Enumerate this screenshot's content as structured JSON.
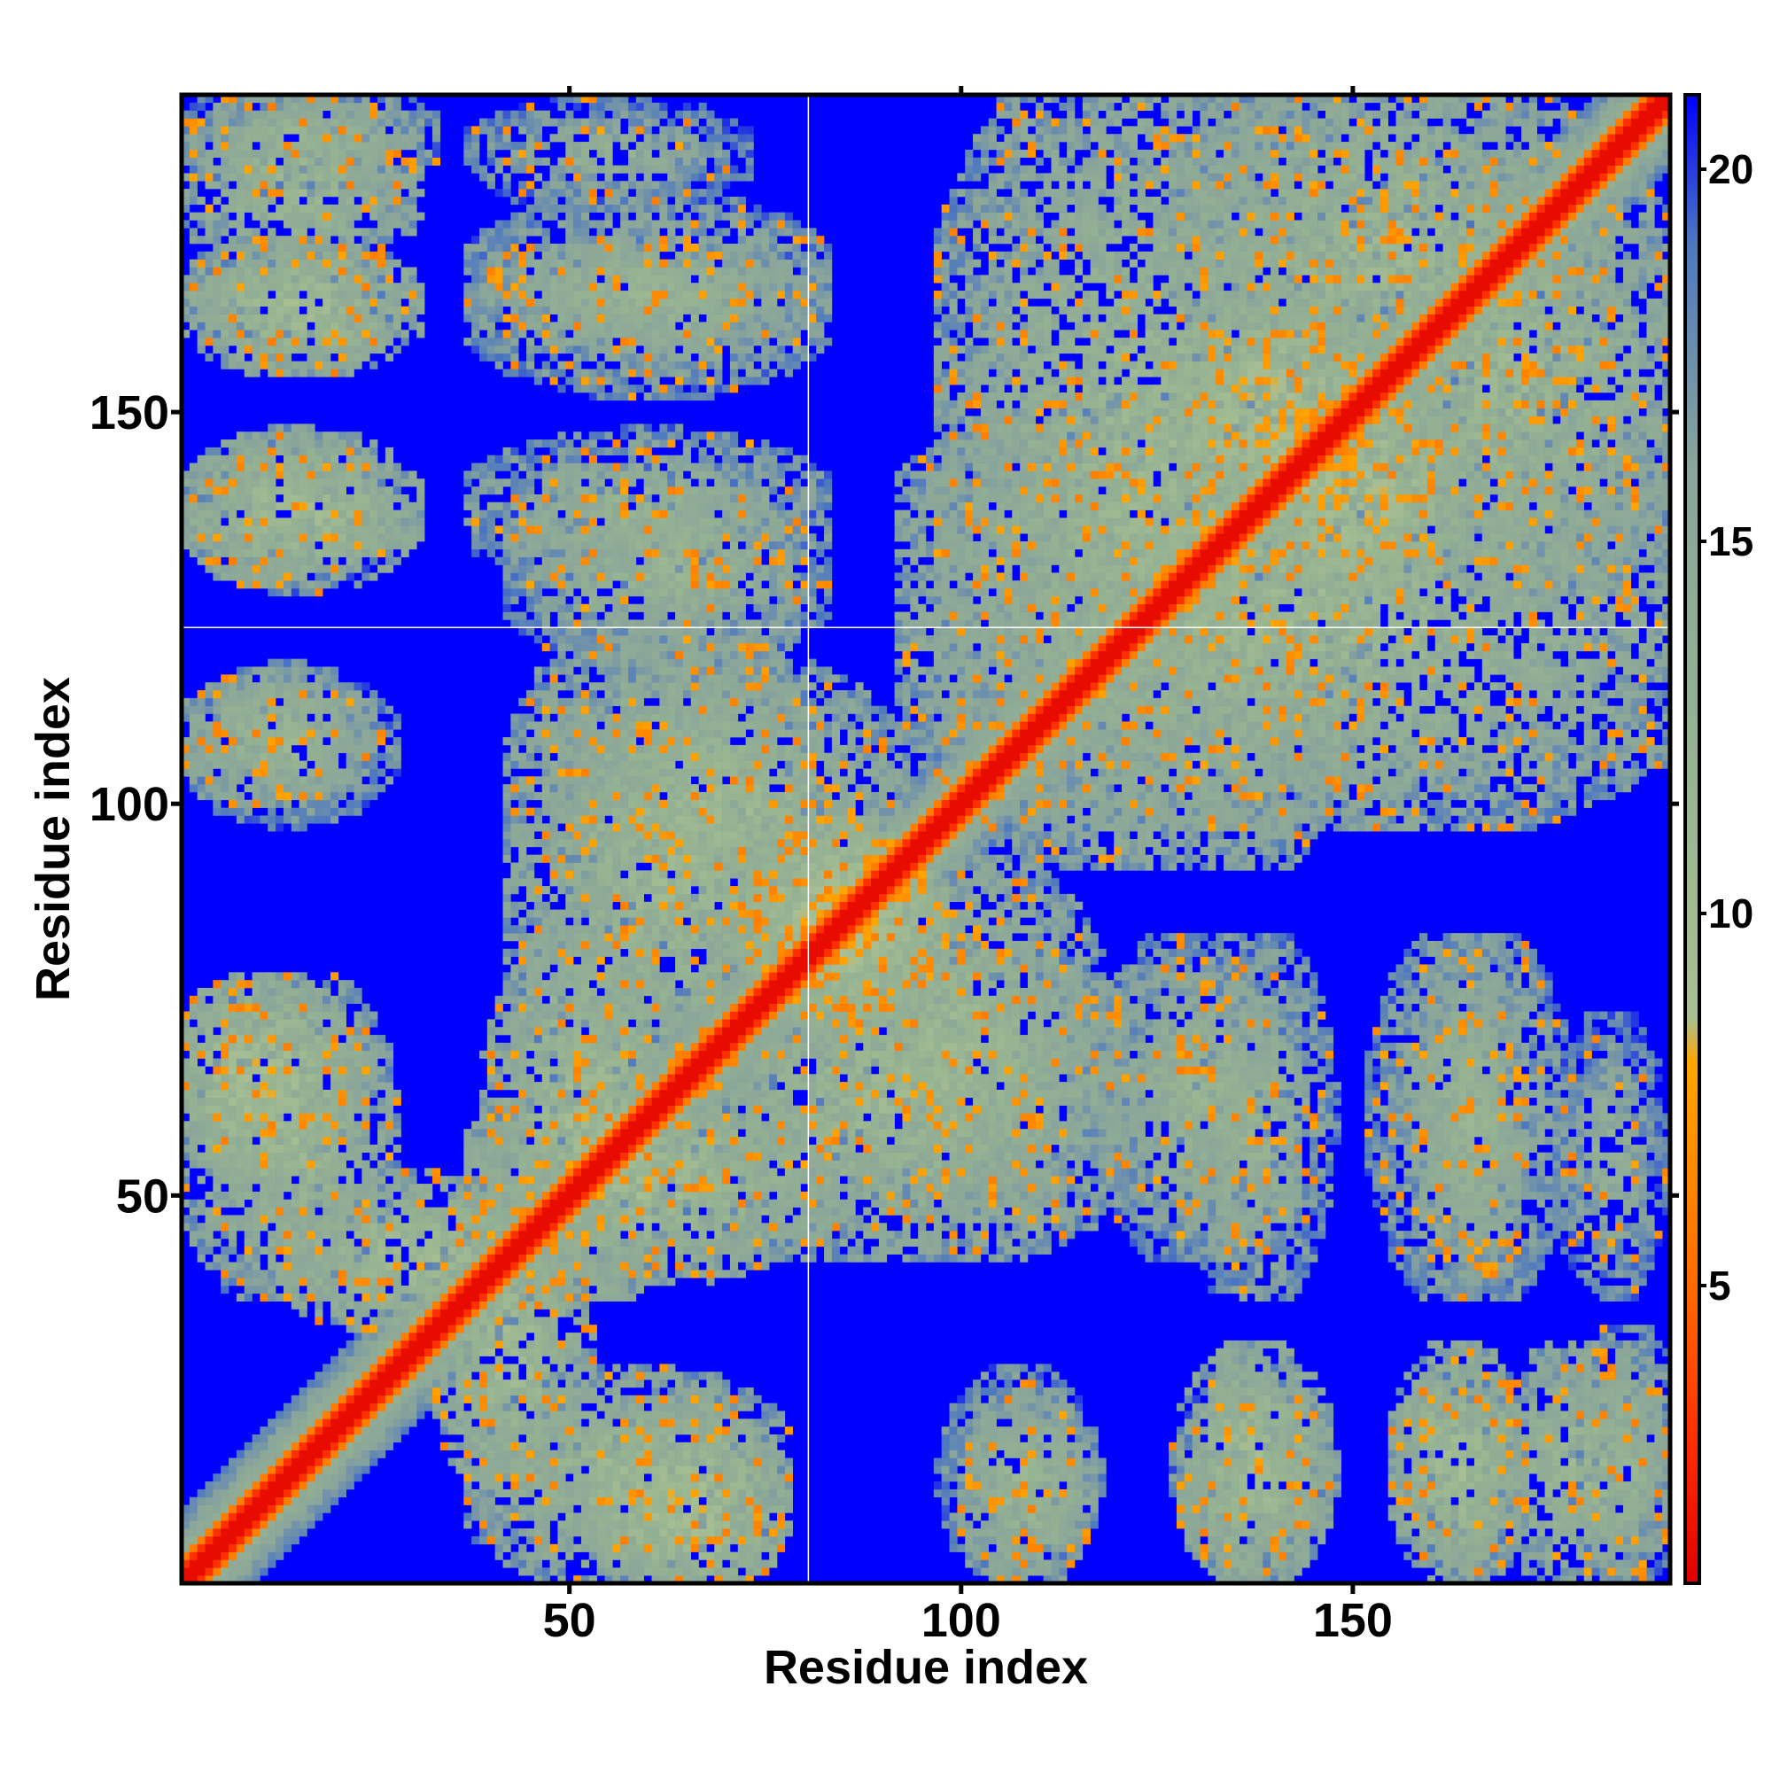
{
  "chart_data": {
    "type": "heatmap",
    "title": "",
    "xlabel": "Residue index",
    "ylabel": "Residue index",
    "n_residues": 190,
    "xlim": [
      1,
      190
    ],
    "ylim": [
      1,
      190
    ],
    "x_ticks": [
      50,
      100,
      150
    ],
    "y_ticks": [
      50,
      100,
      150
    ],
    "x_tick_labels": [
      "50",
      "100",
      "150"
    ],
    "y_tick_labels": [
      "50",
      "100",
      "150"
    ],
    "reference_lines": {
      "x": 81,
      "y": 122,
      "color": "#ffffff"
    },
    "value_range": [
      1,
      21
    ],
    "colorbar": {
      "ticks": [
        5,
        10,
        15,
        20
      ],
      "tick_labels": [
        "5",
        "10",
        "15",
        "20"
      ],
      "stops": [
        {
          "value": 1,
          "color": "#e00000"
        },
        {
          "value": 3,
          "color": "#ff3000"
        },
        {
          "value": 5,
          "color": "#ff6a00"
        },
        {
          "value": 8,
          "color": "#ffa500"
        },
        {
          "value": 8.6,
          "color": "#a9bf93"
        },
        {
          "value": 12,
          "color": "#96b392"
        },
        {
          "value": 16,
          "color": "#8aa59a"
        },
        {
          "value": 19,
          "color": "#4d78c0"
        },
        {
          "value": 21,
          "color": "#0000ff"
        }
      ]
    },
    "matrix_description_of_values": "pairwise residue distance; small values near diagonal (red), large values (blue) far off-diagonal",
    "contact_regions": [
      {
        "x": [
          1,
          190
        ],
        "y_eq_x": true,
        "value": 2
      },
      {
        "x": [
          3,
          28
        ],
        "y": [
          170,
          188
        ],
        "value": 11
      },
      {
        "x": [
          3,
          28
        ],
        "y": [
          157,
          170
        ],
        "value": 10
      },
      {
        "x": [
          3,
          28
        ],
        "y": [
          130,
          145
        ],
        "value": 10
      },
      {
        "x": [
          3,
          22
        ],
        "y": [
          102,
          115
        ],
        "value": 11
      },
      {
        "x": [
          1,
          20
        ],
        "y": [
          55,
          75
        ],
        "value": 9
      },
      {
        "x": [
          15,
          45
        ],
        "y": [
          35,
          50
        ],
        "value": 10
      },
      {
        "x": [
          40,
          80
        ],
        "y": [
          42,
          62
        ],
        "value": 10
      },
      {
        "x": [
          45,
          80
        ],
        "y": [
          65,
          120
        ],
        "value": 11
      },
      {
        "x": [
          85,
          115
        ],
        "y": [
          50,
          90
        ],
        "value": 11
      },
      {
        "x": [
          40,
          80
        ],
        "y": [
          130,
          145
        ],
        "value": 12
      },
      {
        "x": [
          40,
          80
        ],
        "y": [
          160,
          170
        ],
        "value": 12
      },
      {
        "x": [
          40,
          70
        ],
        "y": [
          178,
          188
        ],
        "value": 13
      },
      {
        "x": [
          100,
          150
        ],
        "y": [
          95,
          190
        ],
        "value": 11
      },
      {
        "x": [
          150,
          190
        ],
        "y": [
          130,
          180
        ],
        "value": 11
      },
      {
        "x": [
          120,
          140
        ],
        "y": [
          45,
          80
        ],
        "value": 12
      },
      {
        "x": [
          155,
          175
        ],
        "y": [
          40,
          80
        ],
        "value": 12
      },
      {
        "x": [
          40,
          75
        ],
        "y": [
          3,
          25
        ],
        "value": 11
      },
      {
        "x": [
          100,
          115
        ],
        "y": [
          3,
          25
        ],
        "value": 12
      },
      {
        "x": [
          130,
          145
        ],
        "y": [
          3,
          25
        ],
        "value": 12
      },
      {
        "x": [
          160,
          170
        ],
        "y": [
          3,
          25
        ],
        "value": 12
      },
      {
        "x": [
          180,
          190
        ],
        "y": [
          3,
          30
        ],
        "value": 12
      },
      {
        "x": [
          75,
          95
        ],
        "y": [
          75,
          95
        ],
        "value": 8
      },
      {
        "x": [
          130,
          150
        ],
        "y": [
          140,
          160
        ],
        "value": 8
      }
    ]
  }
}
